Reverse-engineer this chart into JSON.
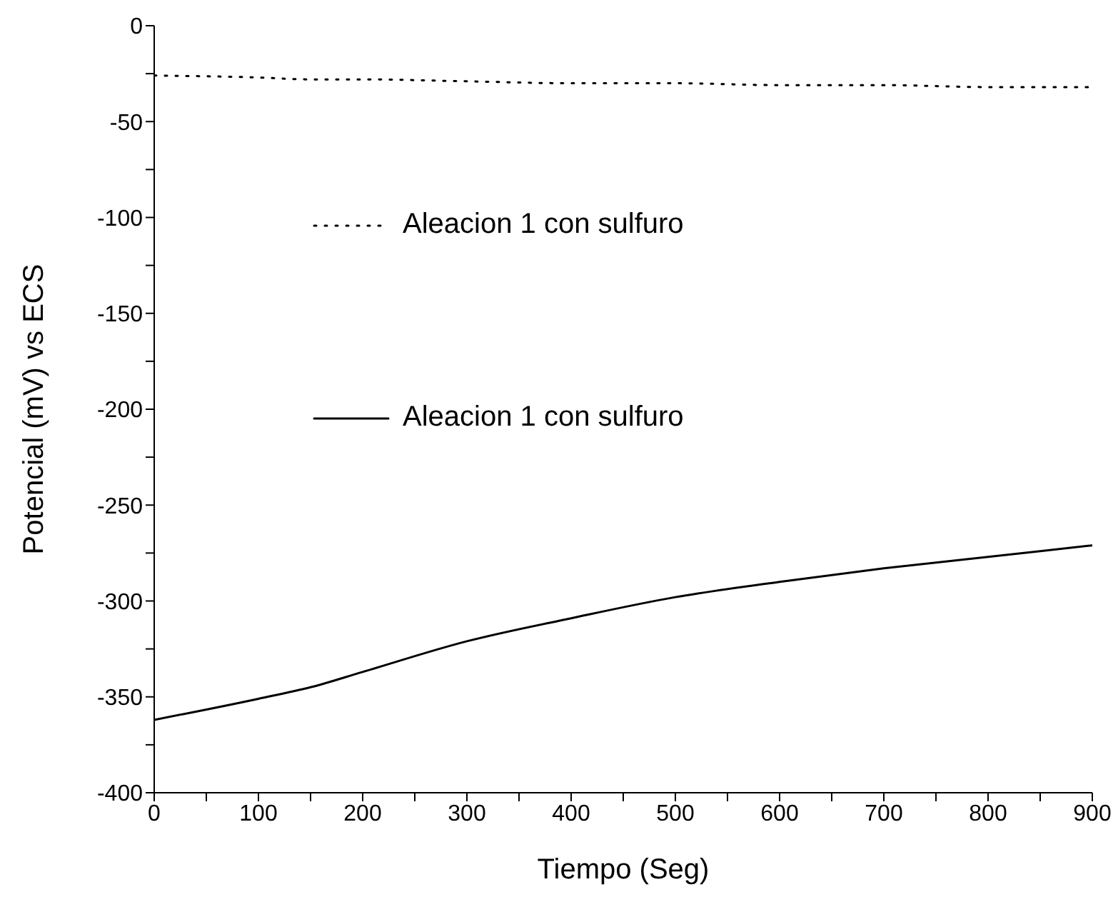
{
  "chart_data": {
    "type": "line",
    "xlabel": "Tiempo (Seg)",
    "ylabel": "Potencial (mV) vs ECS",
    "x": [
      0,
      100,
      150,
      200,
      300,
      400,
      500,
      600,
      700,
      800,
      900
    ],
    "xlim": [
      0,
      900
    ],
    "ylim": [
      -400,
      0
    ],
    "xticks": [
      0,
      {
        "value": 50,
        "label": null
      },
      100,
      {
        "value": 150,
        "label": null
      },
      200,
      {
        "value": 250,
        "label": null
      },
      300,
      {
        "value": 350,
        "label": null
      },
      400,
      {
        "value": 450,
        "label": null
      },
      500,
      {
        "value": 550,
        "label": null
      },
      600,
      {
        "value": 650,
        "label": null
      },
      700,
      {
        "value": 750,
        "label": null
      },
      800,
      {
        "value": 850,
        "label": null
      },
      900
    ],
    "yticks": [
      -400,
      {
        "value": -375,
        "label": null
      },
      -350,
      {
        "value": -325,
        "label": null
      },
      -300,
      {
        "value": -275,
        "label": null
      },
      -250,
      {
        "value": -225,
        "label": null
      },
      -200,
      {
        "value": -175,
        "label": null
      },
      -150,
      {
        "value": -125,
        "label": null
      },
      -100,
      {
        "value": -75,
        "label": null
      },
      -50,
      {
        "value": -25,
        "label": null
      },
      0
    ],
    "series": [
      {
        "name": "Aleacion 1 con sulfuro",
        "color": "#000000",
        "line_style": "dotted",
        "values": [
          -26,
          -27,
          -28,
          -28,
          -29,
          -30,
          -30,
          -31,
          -31,
          -32,
          -32
        ]
      },
      {
        "name": "Aleacion 1 con sulfuro",
        "color": "#000000",
        "line_style": "solid",
        "values": [
          -362,
          -351,
          -345,
          -337,
          -321,
          -309,
          -298,
          -290,
          -283,
          -277,
          -271
        ]
      }
    ],
    "legend": "left",
    "grid": false,
    "marker": "none"
  }
}
